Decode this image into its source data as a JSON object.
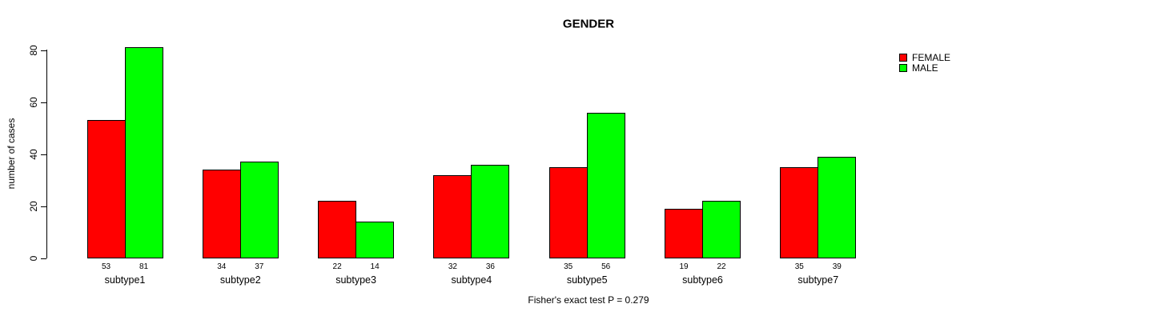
{
  "chart_data": {
    "type": "bar",
    "title": "GENDER",
    "xlabel": "",
    "ylabel": "number of cases",
    "categories": [
      "subtype1",
      "subtype2",
      "subtype3",
      "subtype4",
      "subtype5",
      "subtype6",
      "subtype7"
    ],
    "series": [
      {
        "name": "FEMALE",
        "color": "#ff0000",
        "values": [
          53,
          34,
          22,
          32,
          35,
          19,
          35
        ]
      },
      {
        "name": "MALE",
        "color": "#00ff00",
        "values": [
          81,
          37,
          14,
          36,
          56,
          22,
          39
        ]
      }
    ],
    "ylim": [
      0,
      80
    ],
    "yticks": [
      0,
      20,
      40,
      60,
      80
    ],
    "bar_value_labels": true,
    "grid": false,
    "legend_position": "top-right",
    "annotation": "Fisher's exact test P = 0.279"
  }
}
